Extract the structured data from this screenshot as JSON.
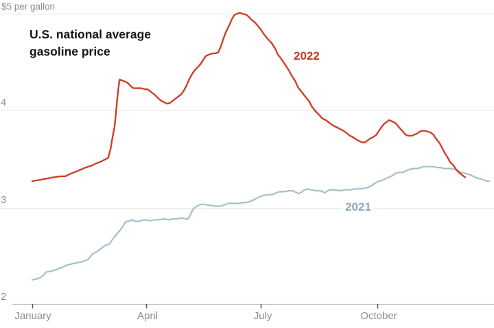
{
  "chart": {
    "top_axis_label": "$5 per gallon",
    "title_line1": "U.S. national average",
    "title_line2": "gasoline price"
  },
  "chart_data": {
    "type": "line",
    "title": "U.S. national average gasoline price",
    "ylabel_top": "$5 per gallon",
    "legend_position": "inline-annotations",
    "grid": true,
    "y_axis": {
      "tick_labels": [
        "4",
        "3",
        "2"
      ],
      "tick_values": [
        4,
        3,
        2
      ],
      "top_gridline_value": 5,
      "range": [
        2,
        5.05
      ],
      "unit": "dollars per gallon"
    },
    "x_axis": {
      "tick_labels": [
        "January",
        "April",
        "July",
        "October"
      ],
      "tick_days": [
        0,
        90,
        181,
        273
      ],
      "unit": "day of year"
    },
    "series": [
      {
        "name": "2021",
        "color": "#a5bfcb",
        "label_color": "#8aa9bb",
        "points": [
          [
            0,
            2.25
          ],
          [
            4,
            2.26
          ],
          [
            6,
            2.27
          ],
          [
            9,
            2.3
          ],
          [
            11,
            2.33
          ],
          [
            15,
            2.34
          ],
          [
            18,
            2.35
          ],
          [
            20,
            2.36
          ],
          [
            24,
            2.38
          ],
          [
            27,
            2.4
          ],
          [
            30,
            2.41
          ],
          [
            33,
            2.42
          ],
          [
            37,
            2.43
          ],
          [
            40,
            2.44
          ],
          [
            44,
            2.46
          ],
          [
            46,
            2.49
          ],
          [
            48,
            2.52
          ],
          [
            51,
            2.54
          ],
          [
            54,
            2.57
          ],
          [
            57,
            2.6
          ],
          [
            61,
            2.62
          ],
          [
            63,
            2.66
          ],
          [
            66,
            2.71
          ],
          [
            68,
            2.74
          ],
          [
            70,
            2.77
          ],
          [
            72,
            2.81
          ],
          [
            74,
            2.85
          ],
          [
            77,
            2.86
          ],
          [
            79,
            2.87
          ],
          [
            82,
            2.85
          ],
          [
            86,
            2.86
          ],
          [
            89,
            2.87
          ],
          [
            93,
            2.86
          ],
          [
            97,
            2.87
          ],
          [
            101,
            2.87
          ],
          [
            104,
            2.88
          ],
          [
            108,
            2.87
          ],
          [
            111,
            2.88
          ],
          [
            115,
            2.88
          ],
          [
            118,
            2.89
          ],
          [
            121,
            2.88
          ],
          [
            123,
            2.88
          ],
          [
            125,
            2.92
          ],
          [
            127,
            2.98
          ],
          [
            130,
            3.01
          ],
          [
            133,
            3.03
          ],
          [
            136,
            3.03
          ],
          [
            139,
            3.02
          ],
          [
            141,
            3.02
          ],
          [
            145,
            3.01
          ],
          [
            148,
            3.01
          ],
          [
            151,
            3.02
          ],
          [
            155,
            3.04
          ],
          [
            159,
            3.04
          ],
          [
            163,
            3.04
          ],
          [
            167,
            3.05
          ],
          [
            170,
            3.05
          ],
          [
            174,
            3.07
          ],
          [
            177,
            3.09
          ],
          [
            180,
            3.11
          ],
          [
            182,
            3.12
          ],
          [
            186,
            3.13
          ],
          [
            190,
            3.13
          ],
          [
            193,
            3.15
          ],
          [
            195,
            3.16
          ],
          [
            199,
            3.16
          ],
          [
            203,
            3.17
          ],
          [
            206,
            3.17
          ],
          [
            209,
            3.15
          ],
          [
            211,
            3.14
          ],
          [
            214,
            3.17
          ],
          [
            217,
            3.19
          ],
          [
            220,
            3.18
          ],
          [
            224,
            3.17
          ],
          [
            228,
            3.17
          ],
          [
            231,
            3.15
          ],
          [
            235,
            3.18
          ],
          [
            239,
            3.18
          ],
          [
            243,
            3.17
          ],
          [
            247,
            3.18
          ],
          [
            251,
            3.18
          ],
          [
            256,
            3.19
          ],
          [
            260,
            3.19
          ],
          [
            264,
            3.2
          ],
          [
            268,
            3.22
          ],
          [
            271,
            3.25
          ],
          [
            274,
            3.27
          ],
          [
            277,
            3.28
          ],
          [
            280,
            3.3
          ],
          [
            282,
            3.31
          ],
          [
            285,
            3.33
          ],
          [
            287,
            3.35
          ],
          [
            290,
            3.36
          ],
          [
            293,
            3.36
          ],
          [
            296,
            3.38
          ],
          [
            298,
            3.39
          ],
          [
            301,
            3.4
          ],
          [
            304,
            3.4
          ],
          [
            307,
            3.41
          ],
          [
            309,
            3.42
          ],
          [
            312,
            3.42
          ],
          [
            314,
            3.42
          ],
          [
            317,
            3.42
          ],
          [
            320,
            3.41
          ],
          [
            323,
            3.41
          ],
          [
            325,
            3.4
          ],
          [
            328,
            3.4
          ],
          [
            331,
            3.4
          ],
          [
            334,
            3.39
          ],
          [
            336,
            3.38
          ],
          [
            339,
            3.36
          ],
          [
            342,
            3.35
          ],
          [
            345,
            3.34
          ],
          [
            347,
            3.33
          ],
          [
            350,
            3.31
          ],
          [
            352,
            3.3
          ],
          [
            355,
            3.29
          ],
          [
            357,
            3.28
          ],
          [
            359,
            3.27
          ],
          [
            361,
            3.27
          ]
        ]
      },
      {
        "name": "2022",
        "color": "#ce402a",
        "label_color": "#c03b24",
        "points": [
          [
            0,
            3.27
          ],
          [
            5,
            3.28
          ],
          [
            9,
            3.29
          ],
          [
            13,
            3.3
          ],
          [
            17,
            3.31
          ],
          [
            22,
            3.32
          ],
          [
            26,
            3.32
          ],
          [
            31,
            3.35
          ],
          [
            37,
            3.38
          ],
          [
            42,
            3.41
          ],
          [
            47,
            3.43
          ],
          [
            50,
            3.45
          ],
          [
            54,
            3.47
          ],
          [
            57,
            3.49
          ],
          [
            60,
            3.51
          ],
          [
            62,
            3.61
          ],
          [
            63,
            3.69
          ],
          [
            65,
            3.83
          ],
          [
            66,
            3.95
          ],
          [
            67,
            4.1
          ],
          [
            68,
            4.22
          ],
          [
            69,
            4.32
          ],
          [
            71,
            4.31
          ],
          [
            75,
            4.29
          ],
          [
            78,
            4.25
          ],
          [
            80,
            4.23
          ],
          [
            83,
            4.23
          ],
          [
            86,
            4.23
          ],
          [
            89,
            4.22
          ],
          [
            91,
            4.22
          ],
          [
            94,
            4.19
          ],
          [
            97,
            4.16
          ],
          [
            100,
            4.12
          ],
          [
            102,
            4.1
          ],
          [
            105,
            4.08
          ],
          [
            107,
            4.07
          ],
          [
            109,
            4.08
          ],
          [
            111,
            4.1
          ],
          [
            113,
            4.12
          ],
          [
            115,
            4.14
          ],
          [
            118,
            4.17
          ],
          [
            120,
            4.21
          ],
          [
            122,
            4.26
          ],
          [
            124,
            4.32
          ],
          [
            126,
            4.37
          ],
          [
            128,
            4.41
          ],
          [
            131,
            4.45
          ],
          [
            133,
            4.48
          ],
          [
            135,
            4.52
          ],
          [
            137,
            4.56
          ],
          [
            140,
            4.58
          ],
          [
            143,
            4.59
          ],
          [
            145,
            4.59
          ],
          [
            147,
            4.6
          ],
          [
            149,
            4.66
          ],
          [
            151,
            4.74
          ],
          [
            153,
            4.81
          ],
          [
            156,
            4.89
          ],
          [
            158,
            4.95
          ],
          [
            160,
            4.99
          ],
          [
            162,
            5.0
          ],
          [
            164,
            5.01
          ],
          [
            166,
            5.0
          ],
          [
            169,
            4.99
          ],
          [
            171,
            4.97
          ],
          [
            173,
            4.94
          ],
          [
            176,
            4.91
          ],
          [
            178,
            4.88
          ],
          [
            181,
            4.83
          ],
          [
            183,
            4.79
          ],
          [
            186,
            4.74
          ],
          [
            189,
            4.7
          ],
          [
            192,
            4.64
          ],
          [
            194,
            4.58
          ],
          [
            197,
            4.53
          ],
          [
            200,
            4.47
          ],
          [
            203,
            4.41
          ],
          [
            205,
            4.36
          ],
          [
            208,
            4.3
          ],
          [
            210,
            4.24
          ],
          [
            213,
            4.19
          ],
          [
            216,
            4.14
          ],
          [
            219,
            4.09
          ],
          [
            221,
            4.04
          ],
          [
            224,
            3.99
          ],
          [
            227,
            3.95
          ],
          [
            229,
            3.92
          ],
          [
            232,
            3.9
          ],
          [
            235,
            3.87
          ],
          [
            237,
            3.85
          ],
          [
            240,
            3.83
          ],
          [
            243,
            3.81
          ],
          [
            246,
            3.79
          ],
          [
            248,
            3.77
          ],
          [
            251,
            3.74
          ],
          [
            254,
            3.72
          ],
          [
            256,
            3.7
          ],
          [
            259,
            3.68
          ],
          [
            261,
            3.67
          ],
          [
            263,
            3.67
          ],
          [
            265,
            3.69
          ],
          [
            267,
            3.71
          ],
          [
            270,
            3.73
          ],
          [
            272,
            3.75
          ],
          [
            274,
            3.79
          ],
          [
            276,
            3.83
          ],
          [
            278,
            3.86
          ],
          [
            280,
            3.88
          ],
          [
            282,
            3.9
          ],
          [
            284,
            3.89
          ],
          [
            287,
            3.87
          ],
          [
            289,
            3.84
          ],
          [
            291,
            3.81
          ],
          [
            293,
            3.78
          ],
          [
            295,
            3.75
          ],
          [
            297,
            3.74
          ],
          [
            300,
            3.74
          ],
          [
            302,
            3.75
          ],
          [
            304,
            3.76
          ],
          [
            306,
            3.78
          ],
          [
            308,
            3.79
          ],
          [
            310,
            3.79
          ],
          [
            313,
            3.78
          ],
          [
            315,
            3.77
          ],
          [
            317,
            3.75
          ],
          [
            319,
            3.71
          ],
          [
            322,
            3.66
          ],
          [
            324,
            3.61
          ],
          [
            326,
            3.56
          ],
          [
            328,
            3.52
          ],
          [
            330,
            3.47
          ],
          [
            333,
            3.43
          ],
          [
            335,
            3.39
          ],
          [
            337,
            3.36
          ],
          [
            339,
            3.34
          ],
          [
            342,
            3.31
          ]
        ]
      }
    ]
  }
}
